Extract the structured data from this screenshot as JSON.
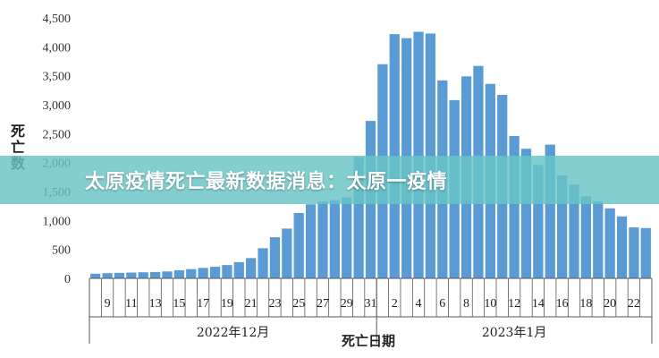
{
  "chart_data": {
    "type": "bar",
    "ylabel": "死亡数",
    "xlabel": "死亡日期",
    "ylim": [
      0,
      4500
    ],
    "yticks": [
      "0",
      "500",
      "1,000",
      "1,500",
      "2,000",
      "2,500",
      "3,000",
      "3,500",
      "4,000",
      "4,500"
    ],
    "ytick_values": [
      0,
      500,
      1000,
      1500,
      2000,
      2500,
      3000,
      3500,
      4000,
      4500
    ],
    "categories": [
      "12-08",
      "12-09",
      "12-10",
      "12-11",
      "12-12",
      "12-13",
      "12-14",
      "12-15",
      "12-16",
      "12-17",
      "12-18",
      "12-19",
      "12-20",
      "12-21",
      "12-22",
      "12-23",
      "12-24",
      "12-25",
      "12-26",
      "12-27",
      "12-28",
      "12-29",
      "12-30",
      "12-31",
      "01-01",
      "01-02",
      "01-03",
      "01-04",
      "01-05",
      "01-06",
      "01-07",
      "01-08",
      "01-09",
      "01-10",
      "01-11",
      "01-12",
      "01-13",
      "01-14",
      "01-15",
      "01-16",
      "01-17",
      "01-18",
      "01-19",
      "01-20",
      "01-21",
      "01-22",
      "01-23"
    ],
    "values": [
      80,
      90,
      95,
      100,
      105,
      110,
      120,
      140,
      160,
      180,
      200,
      230,
      280,
      350,
      520,
      710,
      860,
      1130,
      1280,
      1330,
      1350,
      1400,
      2100,
      2720,
      3700,
      4220,
      4150,
      4260,
      4230,
      3420,
      3080,
      3490,
      3670,
      3360,
      3170,
      2460,
      2240,
      1960,
      2310,
      1780,
      1620,
      1420,
      1330,
      1210,
      1070,
      880,
      870
    ],
    "tick_labels": [
      "9",
      "11",
      "13",
      "15",
      "17",
      "19",
      "21",
      "23",
      "25",
      "27",
      "29",
      "31",
      "2",
      "4",
      "6",
      "8",
      "10",
      "12",
      "14",
      "16",
      "18",
      "20",
      "22"
    ],
    "tick_label_indices": [
      1,
      3,
      5,
      7,
      9,
      11,
      13,
      15,
      17,
      19,
      21,
      23,
      25,
      27,
      29,
      31,
      33,
      35,
      37,
      39,
      41,
      43,
      45
    ],
    "group_labels": [
      "2022年12月",
      "2023年1月"
    ],
    "bar_color": "#5b9bd5",
    "grid": false
  },
  "banner": {
    "text": "太原疫情死亡最新数据消息：太原一疫情"
  }
}
